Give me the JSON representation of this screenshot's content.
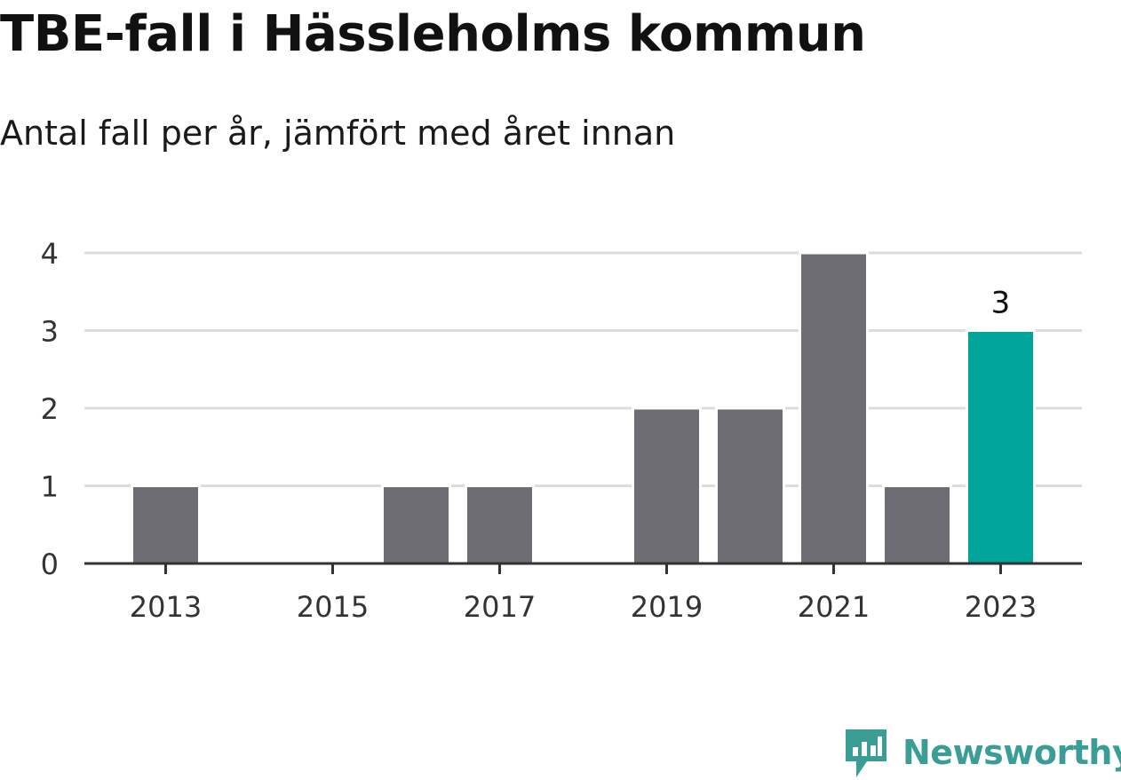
{
  "header": {
    "title": "TBE-fall i Hässleholms kommun",
    "subtitle": "Antal fall per år, jämfört med året innan"
  },
  "chart_data": {
    "type": "bar",
    "categories": [
      "2013",
      "2014",
      "2015",
      "2016",
      "2017",
      "2018",
      "2019",
      "2020",
      "2021",
      "2022",
      "2023"
    ],
    "values": [
      1,
      0,
      0,
      1,
      1,
      0,
      2,
      2,
      4,
      1,
      3
    ],
    "x_tick_labels": [
      "2013",
      "2015",
      "2017",
      "2019",
      "2021",
      "2023"
    ],
    "y_ticks": [
      0,
      1,
      2,
      3,
      4
    ],
    "ylim": [
      0,
      4
    ],
    "grid": true,
    "highlight_category": "2023",
    "data_labels": [
      {
        "category": "2023",
        "text": "3"
      }
    ],
    "colors": {
      "bar": "#6e6d73",
      "highlight": "#00a49a",
      "grid": "#dddddd",
      "axis": "#333333"
    }
  },
  "brand": {
    "logo_text": "Newsworthy",
    "color": "#3a9e96"
  }
}
